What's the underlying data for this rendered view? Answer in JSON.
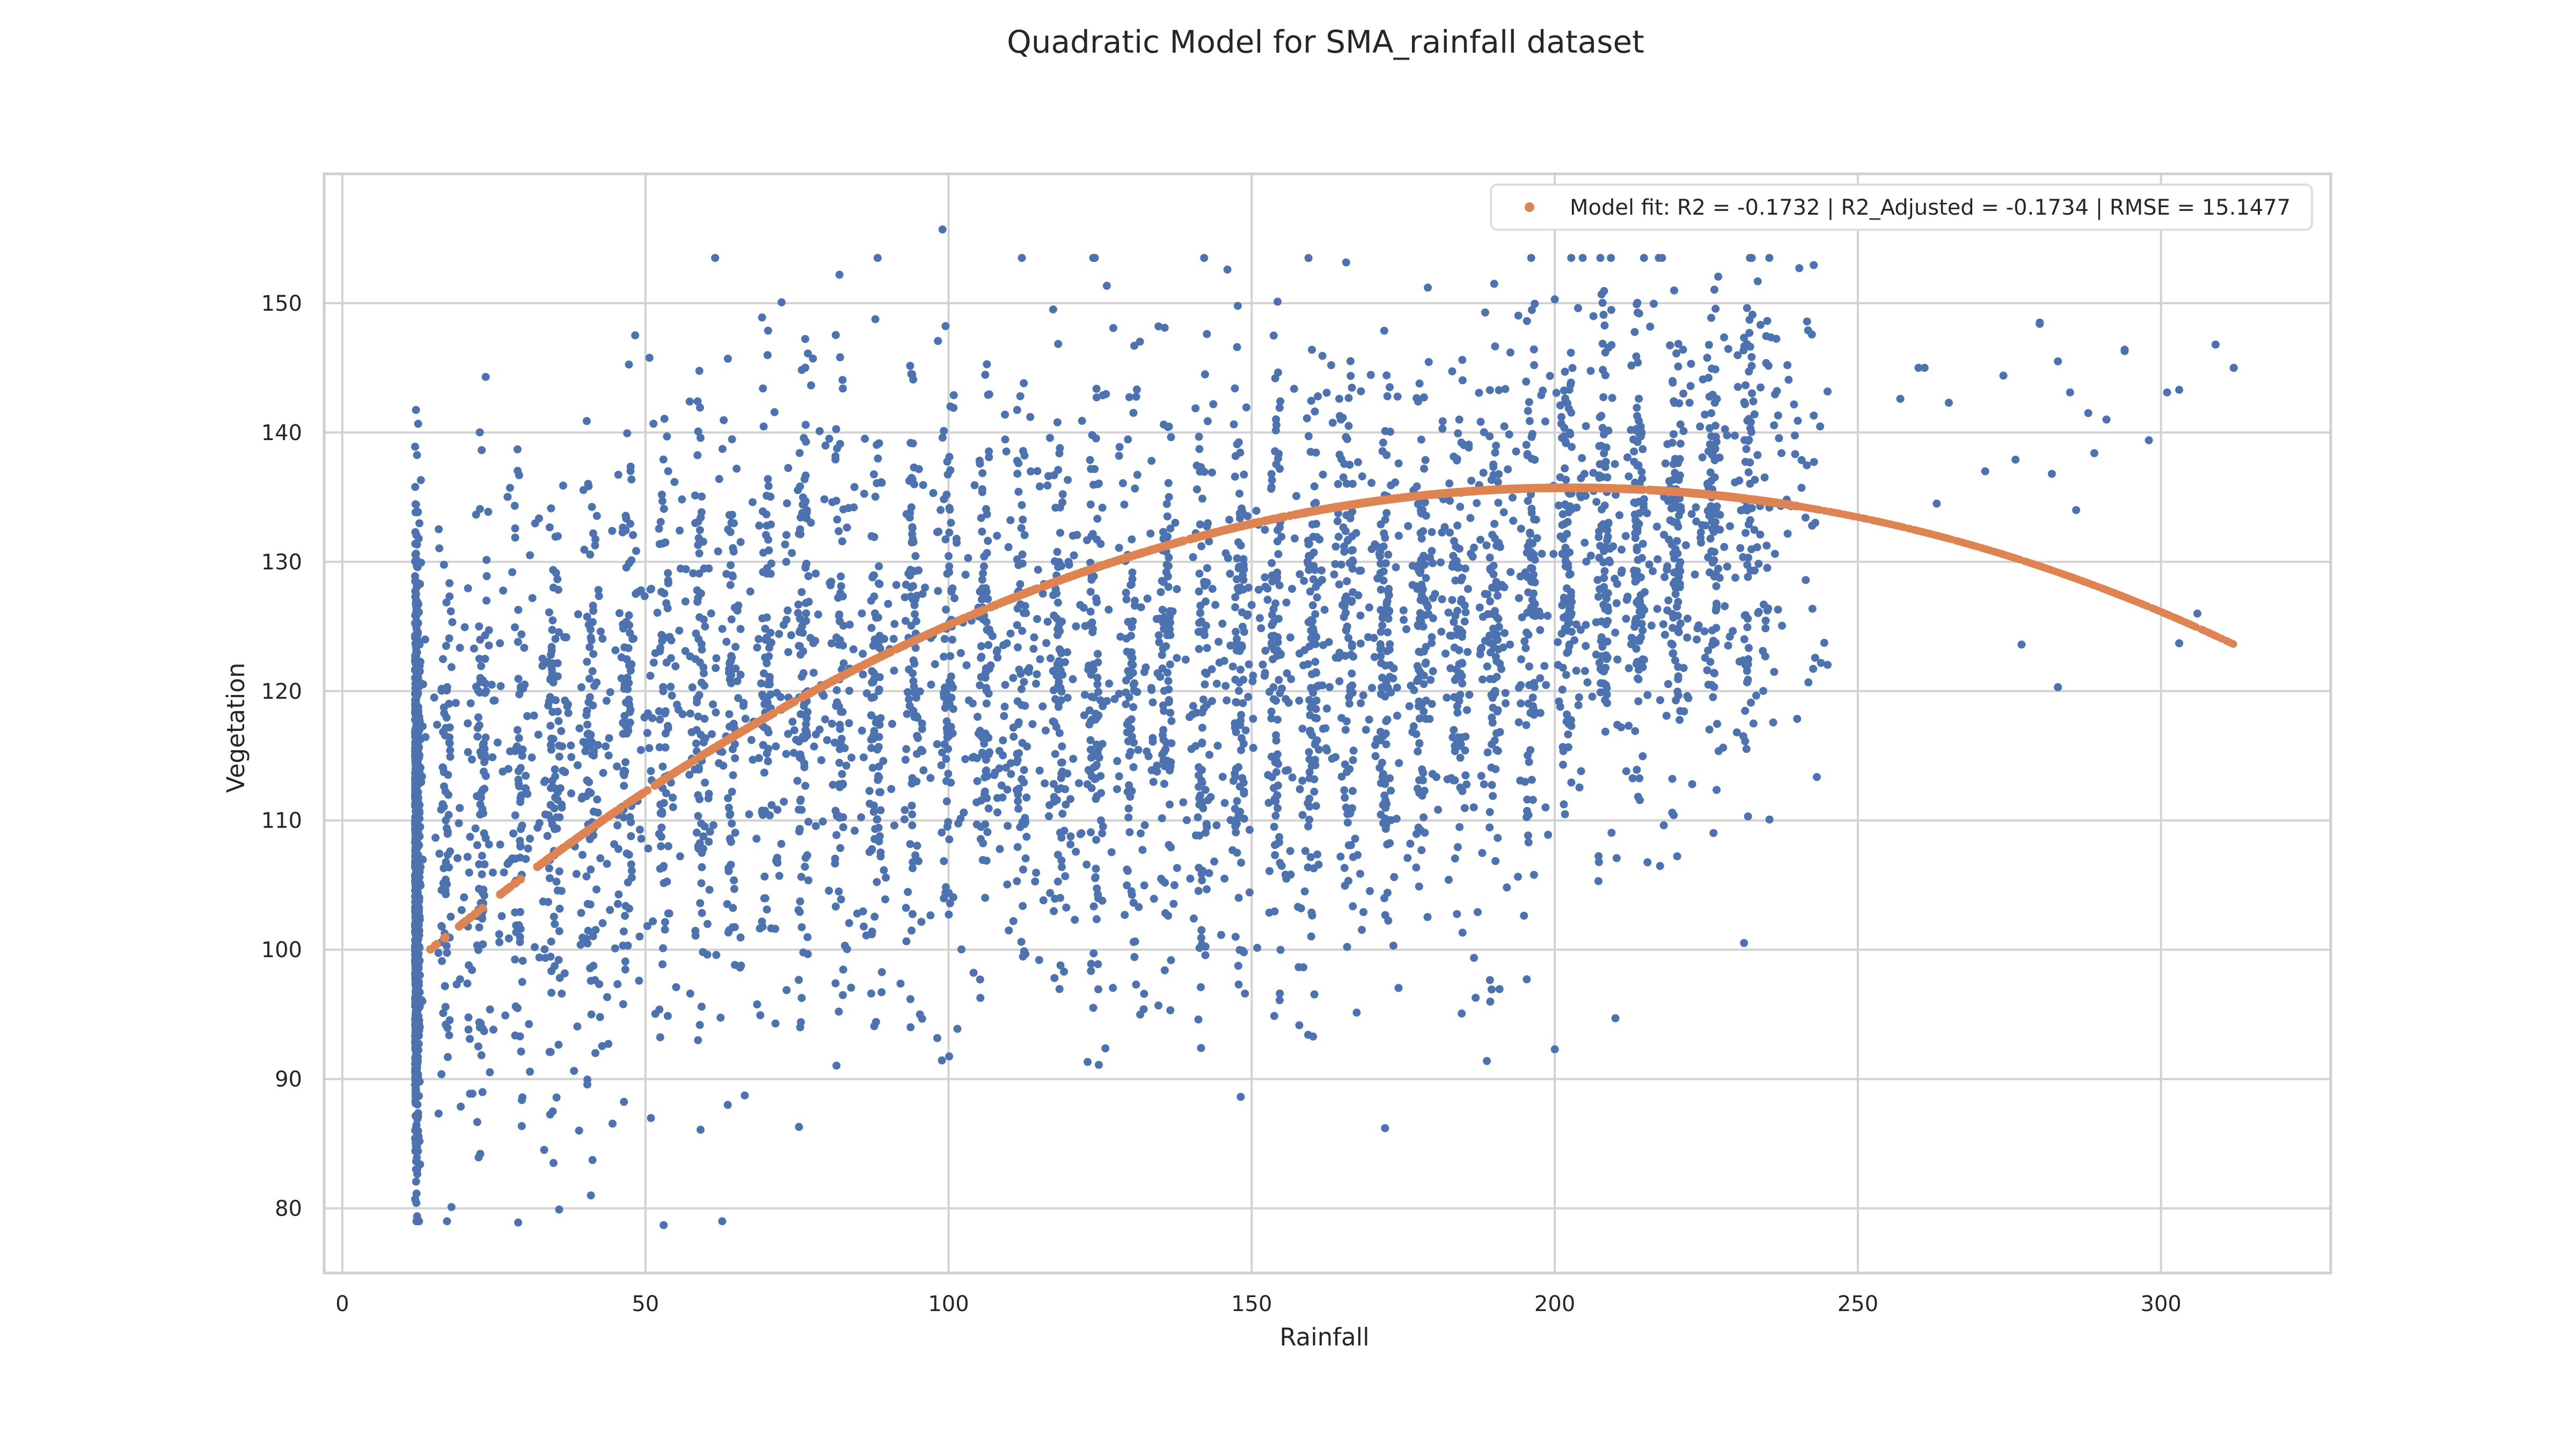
{
  "chart_data": {
    "type": "scatter",
    "title": "Quadratic Model for SMA_rainfall dataset",
    "xlabel": "Rainfall",
    "ylabel": "Vegetation",
    "xlim": [
      -3,
      328
    ],
    "ylim": [
      75,
      160
    ],
    "xticks": [
      0,
      50,
      100,
      150,
      200,
      250,
      300
    ],
    "yticks": [
      80,
      90,
      100,
      110,
      120,
      130,
      140,
      150
    ],
    "grid": true,
    "legend_position": "top-right",
    "colors": {
      "observed": "#4c72b0",
      "fit": "#dd8452"
    },
    "observed_summary": {
      "description_count": 5000,
      "x_range": [
        12,
        312
      ],
      "y_range": [
        78.7,
        155.7
      ]
    },
    "fit": {
      "name": "Model fit: R2 = -0.1732 | R2_Adjusted = -0.1734 | RMSE = 15.1477",
      "coefficients": {
        "a": -0.00101,
        "b": 0.4091,
        "c": 94.3
      },
      "x_range": [
        12,
        312
      ]
    },
    "sample_points": [
      [
        99,
        155.7
      ],
      [
        82,
        152.2
      ],
      [
        146,
        152.6
      ],
      [
        190,
        151.5
      ],
      [
        200,
        150.3
      ],
      [
        260,
        145.0
      ],
      [
        280,
        148.5
      ],
      [
        294,
        146.4
      ],
      [
        309,
        146.8
      ],
      [
        312,
        145.0
      ],
      [
        53,
        78.7
      ],
      [
        29,
        78.9
      ],
      [
        18,
        80.1
      ],
      [
        41,
        81.0
      ],
      [
        172,
        86.2
      ],
      [
        200,
        92.3
      ],
      [
        210,
        94.7
      ],
      [
        283,
        120.3
      ],
      [
        303,
        123.7
      ]
    ]
  }
}
